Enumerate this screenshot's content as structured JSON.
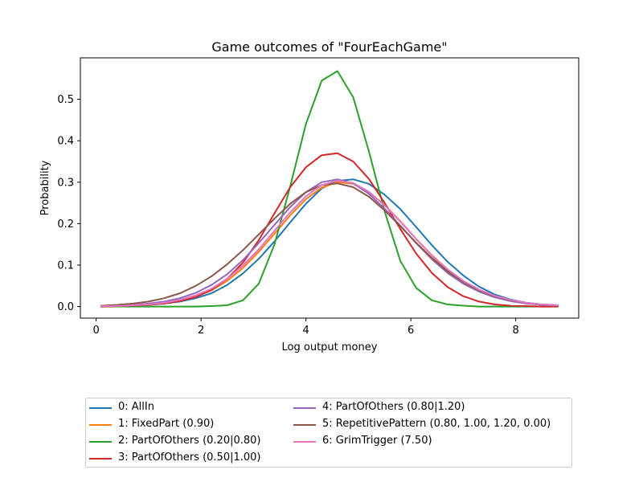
{
  "chart_data": {
    "type": "line",
    "title": "Game outcomes of \"FourEachGame\"",
    "xlabel": "Log output money",
    "ylabel": "Probability",
    "xlim": [
      -0.3,
      9.2
    ],
    "ylim": [
      -0.028,
      0.6
    ],
    "xticks": [
      0,
      2,
      4,
      6,
      8
    ],
    "yticks": [
      0.0,
      0.1,
      0.2,
      0.3,
      0.4,
      0.5
    ],
    "ytick_labels": [
      "0.0",
      "0.1",
      "0.2",
      "0.3",
      "0.4",
      "0.5"
    ],
    "grid": false,
    "legend_position": "below plot",
    "x": [
      0.1,
      0.4,
      0.7,
      1.0,
      1.3,
      1.6,
      1.9,
      2.2,
      2.5,
      2.8,
      3.1,
      3.4,
      3.7,
      4.0,
      4.3,
      4.6,
      4.9,
      5.2,
      5.5,
      5.8,
      6.1,
      6.4,
      6.7,
      7.0,
      7.3,
      7.6,
      7.9,
      8.2,
      8.5,
      8.8
    ],
    "series": [
      {
        "name": "0: AllIn",
        "color": "#1f77b4",
        "values": [
          0.0,
          0.001,
          0.002,
          0.004,
          0.007,
          0.012,
          0.02,
          0.032,
          0.052,
          0.08,
          0.115,
          0.157,
          0.203,
          0.248,
          0.285,
          0.303,
          0.307,
          0.296,
          0.27,
          0.235,
          0.192,
          0.148,
          0.108,
          0.075,
          0.048,
          0.029,
          0.017,
          0.009,
          0.005,
          0.003
        ]
      },
      {
        "name": "1: FixedPart (0.90)",
        "color": "#ff7f0e",
        "values": [
          0.001,
          0.001,
          0.002,
          0.004,
          0.008,
          0.014,
          0.024,
          0.039,
          0.062,
          0.093,
          0.132,
          0.176,
          0.22,
          0.259,
          0.287,
          0.3,
          0.296,
          0.276,
          0.245,
          0.206,
          0.163,
          0.123,
          0.088,
          0.06,
          0.039,
          0.024,
          0.014,
          0.008,
          0.004,
          0.002
        ]
      },
      {
        "name": "2: PartOfOthers (0.20|0.80)",
        "color": "#2ca02c",
        "values": [
          0.0,
          0.0,
          0.0,
          0.0,
          0.0,
          0.0,
          0.0,
          0.001,
          0.003,
          0.015,
          0.055,
          0.15,
          0.29,
          0.44,
          0.545,
          0.568,
          0.505,
          0.375,
          0.23,
          0.11,
          0.045,
          0.015,
          0.005,
          0.002,
          0.0,
          0.0,
          0.0,
          0.0,
          0.0,
          0.0
        ]
      },
      {
        "name": "3: PartOfOthers (0.50|1.00)",
        "color": "#d62728",
        "values": [
          0.0,
          0.001,
          0.002,
          0.004,
          0.007,
          0.013,
          0.023,
          0.04,
          0.067,
          0.106,
          0.16,
          0.225,
          0.288,
          0.336,
          0.365,
          0.37,
          0.35,
          0.308,
          0.25,
          0.187,
          0.128,
          0.081,
          0.047,
          0.025,
          0.012,
          0.005,
          0.002,
          0.001,
          0.0,
          0.0
        ]
      },
      {
        "name": "4: PartOfOthers (0.80|1.20)",
        "color": "#9467bd",
        "values": [
          0.001,
          0.002,
          0.004,
          0.007,
          0.012,
          0.02,
          0.033,
          0.052,
          0.078,
          0.112,
          0.153,
          0.197,
          0.24,
          0.276,
          0.3,
          0.307,
          0.297,
          0.272,
          0.236,
          0.195,
          0.153,
          0.114,
          0.081,
          0.055,
          0.036,
          0.022,
          0.013,
          0.007,
          0.004,
          0.002
        ]
      },
      {
        "name": "5: RepetitivePattern (0.80, 1.00, 1.20, 0.00)",
        "color": "#8c564b",
        "values": [
          0.002,
          0.004,
          0.007,
          0.012,
          0.02,
          0.032,
          0.05,
          0.073,
          0.102,
          0.136,
          0.174,
          0.212,
          0.248,
          0.276,
          0.293,
          0.297,
          0.288,
          0.265,
          0.232,
          0.194,
          0.154,
          0.117,
          0.085,
          0.059,
          0.039,
          0.025,
          0.015,
          0.009,
          0.005,
          0.003
        ]
      },
      {
        "name": "6: GrimTrigger (7.50)",
        "color": "#e377c2",
        "values": [
          0.001,
          0.001,
          0.003,
          0.005,
          0.009,
          0.016,
          0.027,
          0.043,
          0.067,
          0.099,
          0.138,
          0.183,
          0.227,
          0.266,
          0.293,
          0.304,
          0.298,
          0.277,
          0.244,
          0.205,
          0.163,
          0.124,
          0.09,
          0.062,
          0.041,
          0.026,
          0.016,
          0.009,
          0.005,
          0.003
        ]
      }
    ]
  }
}
